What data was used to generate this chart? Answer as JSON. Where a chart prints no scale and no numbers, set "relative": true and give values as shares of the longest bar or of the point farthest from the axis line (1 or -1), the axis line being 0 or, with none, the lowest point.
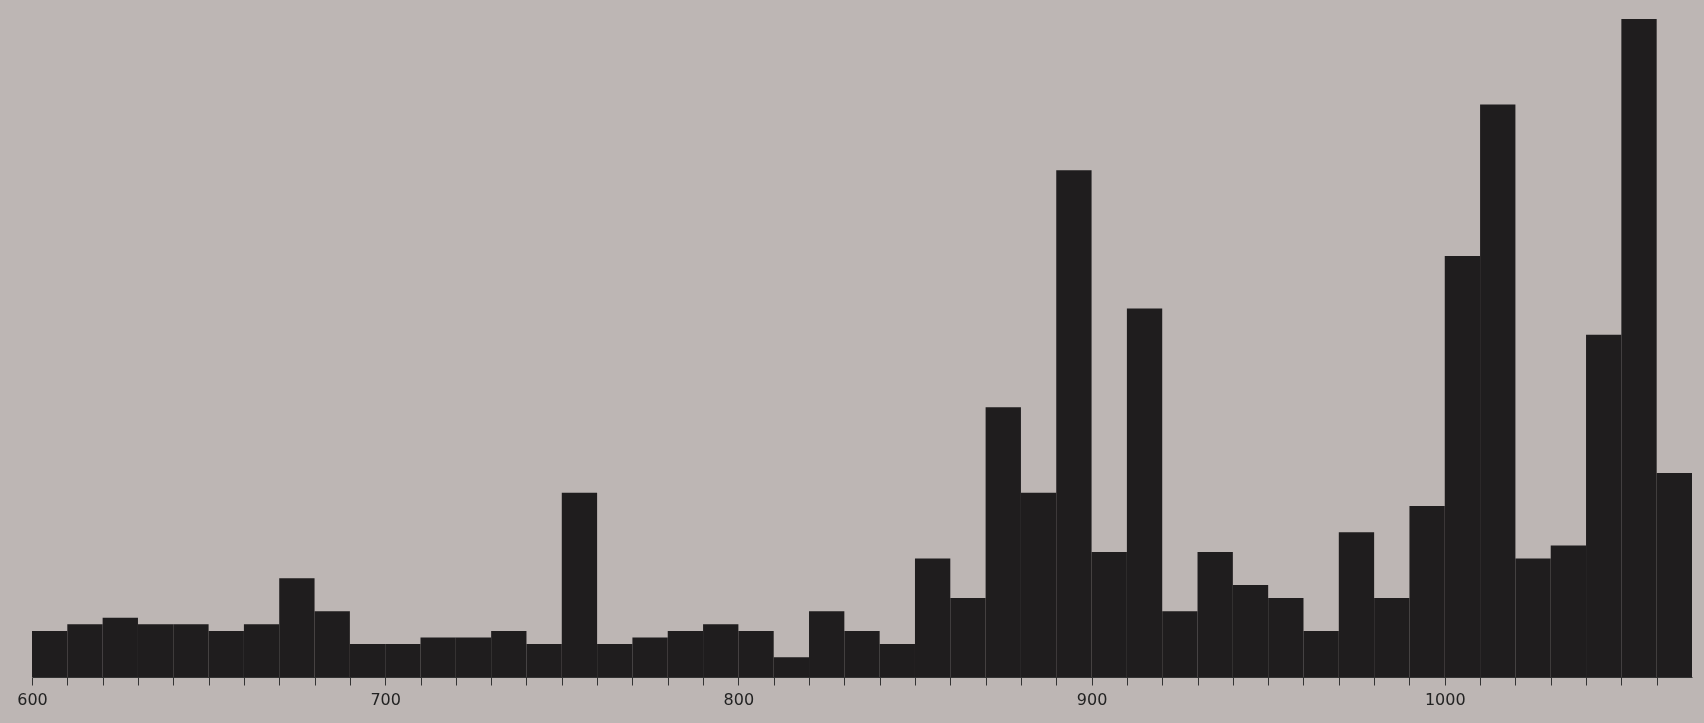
{
  "chart_data": {
    "type": "bar",
    "relative": true,
    "color": "#1f1d1e",
    "x": [
      605,
      615,
      625,
      635,
      645,
      655,
      665,
      675,
      685,
      695,
      705,
      715,
      725,
      735,
      745,
      755,
      765,
      775,
      785,
      795,
      805,
      815,
      825,
      835,
      845,
      855,
      865,
      875,
      885,
      895,
      905,
      915,
      925,
      935,
      945,
      955,
      965,
      975,
      985,
      995,
      1005,
      1015,
      1025,
      1035,
      1045,
      1055,
      1065
    ],
    "values": [
      0.07,
      0.08,
      0.09,
      0.08,
      0.08,
      0.07,
      0.08,
      0.15,
      0.1,
      0.05,
      0.05,
      0.06,
      0.06,
      0.07,
      0.05,
      0.28,
      0.05,
      0.06,
      0.07,
      0.08,
      0.07,
      0.03,
      0.1,
      0.07,
      0.05,
      0.18,
      0.12,
      0.41,
      0.28,
      0.77,
      0.19,
      0.56,
      0.1,
      0.19,
      0.14,
      0.12,
      0.07,
      0.22,
      0.12,
      0.26,
      0.64,
      0.87,
      0.18,
      0.2,
      0.52,
      1,
      0.31
    ],
    "xlim": [
      600,
      1070
    ],
    "xticks": [
      600,
      {
        "value": 610,
        "label": null
      },
      {
        "value": 620,
        "label": null
      },
      {
        "value": 630,
        "label": null
      },
      {
        "value": 640,
        "label": null
      },
      {
        "value": 650,
        "label": null
      },
      {
        "value": 660,
        "label": null
      },
      {
        "value": 670,
        "label": null
      },
      {
        "value": 680,
        "label": null
      },
      {
        "value": 690,
        "label": null
      },
      700,
      {
        "value": 710,
        "label": null
      },
      {
        "value": 720,
        "label": null
      },
      {
        "value": 730,
        "label": null
      },
      {
        "value": 740,
        "label": null
      },
      {
        "value": 750,
        "label": null
      },
      {
        "value": 760,
        "label": null
      },
      {
        "value": 770,
        "label": null
      },
      {
        "value": 780,
        "label": null
      },
      {
        "value": 790,
        "label": null
      },
      800,
      {
        "value": 810,
        "label": null
      },
      {
        "value": 820,
        "label": null
      },
      {
        "value": 830,
        "label": null
      },
      {
        "value": 840,
        "label": null
      },
      {
        "value": 850,
        "label": null
      },
      {
        "value": 860,
        "label": null
      },
      {
        "value": 870,
        "label": null
      },
      {
        "value": 880,
        "label": null
      },
      {
        "value": 890,
        "label": null
      },
      900,
      {
        "value": 910,
        "label": null
      },
      {
        "value": 920,
        "label": null
      },
      {
        "value": 930,
        "label": null
      },
      {
        "value": 940,
        "label": null
      },
      {
        "value": 950,
        "label": null
      },
      {
        "value": 960,
        "label": null
      },
      {
        "value": 970,
        "label": null
      },
      {
        "value": 980,
        "label": null
      },
      {
        "value": 990,
        "label": null
      },
      1000,
      {
        "value": 1010,
        "label": null
      },
      {
        "value": 1020,
        "label": null
      },
      {
        "value": 1030,
        "label": null
      },
      {
        "value": 1040,
        "label": null
      },
      {
        "value": 1050,
        "label": null
      },
      {
        "value": 1060,
        "label": null
      }
    ],
    "grid": false
  }
}
